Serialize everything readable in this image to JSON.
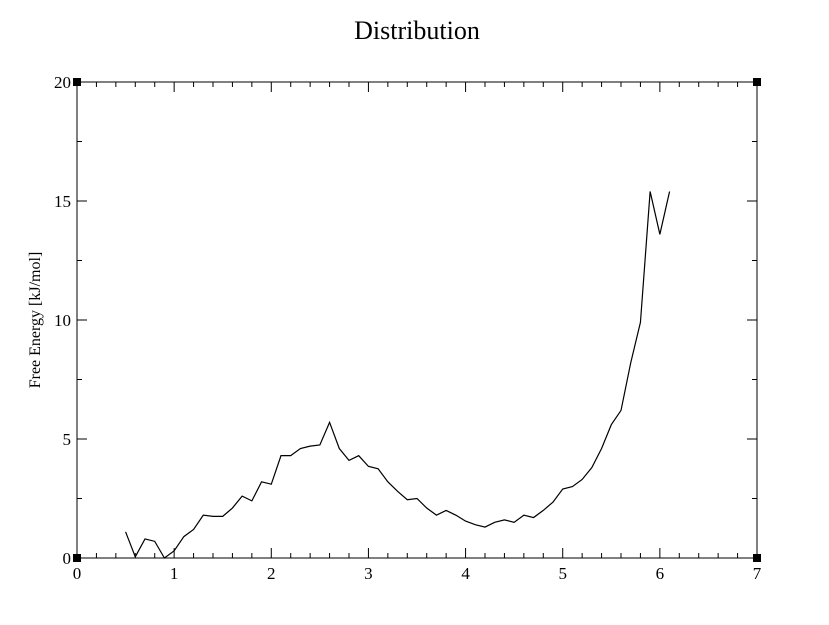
{
  "chart_data": {
    "type": "line",
    "title": "Distribution",
    "xlabel": "",
    "ylabel": "Free Energy [kJ/mol]",
    "xlim": [
      0,
      7
    ],
    "ylim": [
      0,
      20
    ],
    "x_ticks": [
      0,
      1,
      2,
      3,
      4,
      5,
      6,
      7
    ],
    "y_ticks": [
      0,
      5,
      10,
      15,
      20
    ],
    "x_minor_step": 0.2,
    "y_minor_step": 2.5,
    "grid": false,
    "legend": "none",
    "line_color": "#000000",
    "series": [
      {
        "x": [
          0.5,
          0.6,
          0.7,
          0.8,
          0.9,
          1.0,
          1.1,
          1.2,
          1.3,
          1.4,
          1.5,
          1.6,
          1.7,
          1.8,
          1.9,
          2.0,
          2.1,
          2.2,
          2.3,
          2.4,
          2.5,
          2.6,
          2.7,
          2.8,
          2.9,
          3.0,
          3.1,
          3.2,
          3.3,
          3.4,
          3.5,
          3.6,
          3.7,
          3.8,
          3.9,
          4.0,
          4.1,
          4.2,
          4.3,
          4.4,
          4.5,
          4.6,
          4.7,
          4.8,
          4.9,
          5.0,
          5.1,
          5.2,
          5.3,
          5.4,
          5.5,
          5.6,
          5.7,
          5.8,
          5.9,
          6.0,
          6.1
        ],
        "y": [
          1.1,
          0.05,
          0.8,
          0.7,
          0.0,
          0.3,
          0.9,
          1.2,
          1.8,
          1.75,
          1.75,
          2.1,
          2.6,
          2.4,
          3.2,
          3.1,
          4.3,
          4.3,
          4.6,
          4.7,
          4.75,
          5.7,
          4.6,
          4.1,
          4.3,
          3.85,
          3.75,
          3.2,
          2.8,
          2.45,
          2.5,
          2.1,
          1.8,
          2.0,
          1.8,
          1.55,
          1.4,
          1.3,
          1.5,
          1.6,
          1.5,
          1.8,
          1.7,
          2.0,
          2.35,
          2.9,
          3.0,
          3.3,
          3.8,
          4.6,
          5.6,
          6.2,
          8.2,
          9.9,
          15.4,
          13.6,
          15.4
        ]
      }
    ]
  }
}
